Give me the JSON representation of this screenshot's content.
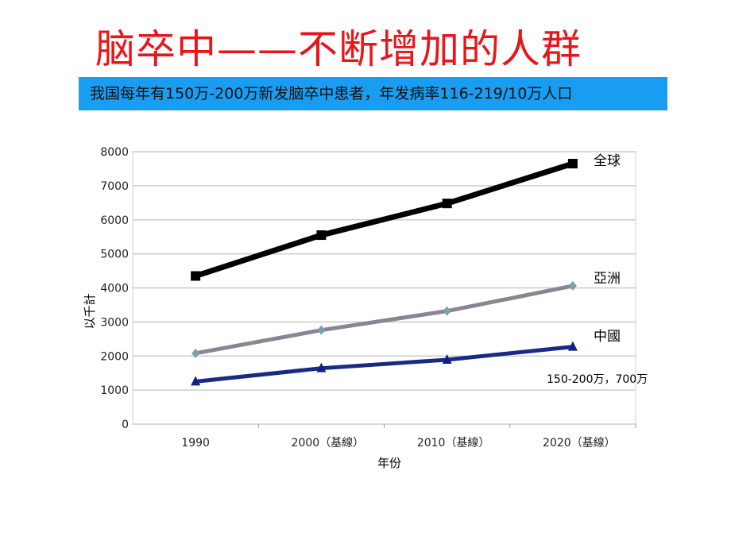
{
  "title": "脑卒中——不断增加的人群",
  "banner": "我国每年有150万-200万新发脑卒中患者，年发病率116-219/10万人口",
  "chart_data": {
    "type": "line",
    "categories": [
      "1990",
      "2000（基線）",
      "2010（基線）",
      "2020（基線）"
    ],
    "xlabel": "年份",
    "ylabel": "以千計",
    "ylim": [
      0,
      8000
    ],
    "yticks": [
      0,
      1000,
      2000,
      3000,
      4000,
      5000,
      6000,
      7000,
      8000
    ],
    "grid": true,
    "series": [
      {
        "name": "全球",
        "values": [
          4350,
          5550,
          6480,
          7650
        ],
        "color": "#000000",
        "marker": "square"
      },
      {
        "name": "亞洲",
        "values": [
          2080,
          2760,
          3320,
          4060
        ],
        "color": "#8a8590",
        "marker": "diamond"
      },
      {
        "name": "中國",
        "values": [
          1250,
          1640,
          1890,
          2270
        ],
        "color": "#1a2a80",
        "marker": "triangle"
      }
    ],
    "annotation": "150-200万，700万"
  }
}
